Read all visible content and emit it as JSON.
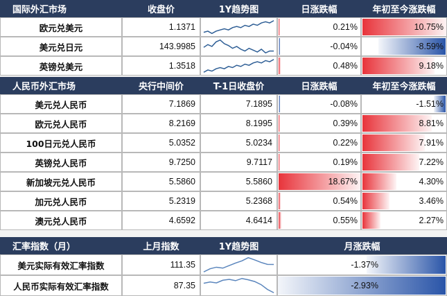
{
  "chart_data": {
    "type": "table",
    "sections": [
      {
        "headers": [
          "国际外汇市场",
          "收盘价",
          "1Y趋势图",
          "日涨跌幅",
          "年初至今涨跌幅"
        ],
        "rows": [
          {
            "name": "欧元兑美元",
            "price": "1.1371",
            "spark": [
              1.04,
              1.05,
              1.03,
              1.05,
              1.06,
              1.07,
              1.06,
              1.08,
              1.09,
              1.08,
              1.1,
              1.09,
              1.11,
              1.1,
              1.12,
              1.13,
              1.12,
              1.14
            ],
            "day": 0.21,
            "day_label": "0.21%",
            "ytd": 10.75,
            "ytd_label": "10.75%"
          },
          {
            "name": "美元兑日元",
            "price": "143.9985",
            "spark": [
              148,
              151,
              149,
              154,
              156,
              152,
              150,
              147,
              149,
              146,
              144,
              147,
              145,
              143,
              146,
              142,
              144,
              144
            ],
            "day": -0.04,
            "day_label": "-0.04%",
            "ytd": -8.59,
            "ytd_label": "-8.59%"
          },
          {
            "name": "英镑兑美元",
            "price": "1.3518",
            "spark": [
              1.24,
              1.26,
              1.25,
              1.27,
              1.28,
              1.27,
              1.29,
              1.28,
              1.3,
              1.29,
              1.31,
              1.3,
              1.32,
              1.33,
              1.32,
              1.34,
              1.33,
              1.35
            ],
            "day": 0.48,
            "day_label": "0.48%",
            "ytd": 9.18,
            "ytd_label": "9.18%"
          }
        ]
      },
      {
        "headers": [
          "人民币外汇市场",
          "央行中间价",
          "T-1日收盘价",
          "日涨跌幅",
          "年初至今涨跌幅"
        ],
        "rows": [
          {
            "name": "美元兑人民币",
            "mid": "7.1869",
            "close": "7.1895",
            "day": -0.08,
            "day_label": "-0.08%",
            "ytd": -1.51,
            "ytd_label": "-1.51%"
          },
          {
            "name": "欧元兑人民币",
            "mid": "8.2169",
            "close": "8.1995",
            "day": 0.39,
            "day_label": "0.39%",
            "ytd": 8.81,
            "ytd_label": "8.81%"
          },
          {
            "name": "100日元兑人民币",
            "mid": "5.0352",
            "close": "5.0234",
            "day": 0.22,
            "day_label": "0.22%",
            "ytd": 7.91,
            "ytd_label": "7.91%"
          },
          {
            "name": "英镑兑人民币",
            "mid": "9.7250",
            "close": "9.7117",
            "day": 0.19,
            "day_label": "0.19%",
            "ytd": 7.22,
            "ytd_label": "7.22%"
          },
          {
            "name": "新加坡元兑人民币",
            "mid": "5.5860",
            "close": "5.5860",
            "day": 18.67,
            "day_label": "18.67%",
            "ytd": 4.3,
            "ytd_label": "4.30%"
          },
          {
            "name": "加元兑人民币",
            "mid": "5.2319",
            "close": "5.2368",
            "day": 0.54,
            "day_label": "0.54%",
            "ytd": 3.46,
            "ytd_label": "3.46%"
          },
          {
            "name": "澳元兑人民币",
            "mid": "4.6592",
            "close": "4.6414",
            "day": 0.55,
            "day_label": "0.55%",
            "ytd": 2.27,
            "ytd_label": "2.27%"
          }
        ]
      },
      {
        "headers": [
          "汇率指数（月）",
          "上月指数",
          "1Y趋势图",
          "月涨跌幅"
        ],
        "rows": [
          {
            "name": "美元实际有效汇率指数",
            "value": "111.35",
            "spark": [
              109,
              110,
              110.5,
              110.2,
              111,
              111.8,
              112.5,
              113.5,
              112.8,
              112,
              111.4,
              111.35
            ],
            "month": -1.37,
            "month_label": "-1.37%"
          },
          {
            "name": "人民币实际有效汇率指数",
            "value": "87.35",
            "spark": [
              89.5,
              89.8,
              89.6,
              90.2,
              90.4,
              90.1,
              90.6,
              90.3,
              89.9,
              89.2,
              88.1,
              87.35
            ],
            "month": -2.93,
            "month_label": "-2.93%"
          }
        ]
      }
    ],
    "colors": {
      "header": "#2b3d5e",
      "positive": "#e8343b",
      "negative": "#2a55a8",
      "sparkline": "#2f5f96",
      "sparkline_light": "#5b86bd"
    }
  }
}
